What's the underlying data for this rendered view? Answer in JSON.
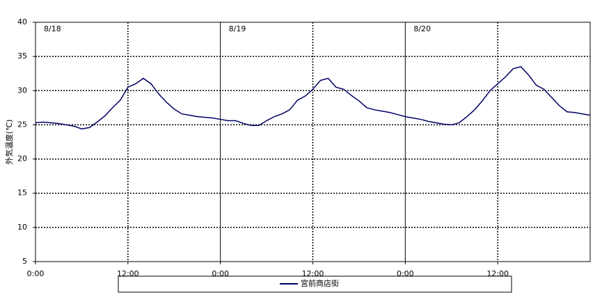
{
  "chart_data": {
    "type": "line",
    "y_label": "外気温度(℃)",
    "x": [
      0,
      1,
      2,
      3,
      4,
      5,
      6,
      7,
      8,
      9,
      10,
      11,
      12,
      13,
      14,
      15,
      16,
      17,
      18,
      19,
      20,
      21,
      22,
      23,
      24,
      25,
      26,
      27,
      28,
      29,
      30,
      31,
      32,
      33,
      34,
      35,
      36,
      37,
      38,
      39,
      40,
      41,
      42,
      43,
      44,
      45,
      46,
      47,
      48,
      49,
      50,
      51,
      52,
      53,
      54,
      55,
      56,
      57,
      58,
      59,
      60,
      61,
      62,
      63,
      64,
      65,
      66,
      67,
      68,
      69,
      70,
      71,
      72
    ],
    "series": [
      {
        "name": "宮前商店街",
        "color": "#000066",
        "values": [
          25.3,
          25.4,
          25.3,
          25.2,
          25.0,
          24.8,
          24.4,
          24.6,
          25.4,
          26.3,
          27.5,
          28.6,
          30.5,
          31.0,
          31.8,
          31.0,
          29.5,
          28.3,
          27.3,
          26.6,
          26.4,
          26.2,
          26.1,
          26.0,
          25.8,
          25.6,
          25.6,
          25.2,
          24.9,
          24.9,
          25.6,
          26.2,
          26.6,
          27.2,
          28.6,
          29.2,
          30.2,
          31.5,
          31.8,
          30.5,
          30.2,
          29.3,
          28.5,
          27.5,
          27.2,
          27.0,
          26.8,
          26.5,
          26.2,
          26.0,
          25.8,
          25.5,
          25.3,
          25.1,
          25.0,
          25.3,
          26.2,
          27.2,
          28.5,
          30.0,
          31.0,
          32.0,
          33.2,
          33.5,
          32.3,
          30.8,
          30.2,
          29.0,
          27.8,
          26.9,
          26.8,
          26.6,
          26.4
        ]
      }
    ],
    "xlim": [
      0,
      72
    ],
    "xticks": [
      {
        "value": 0,
        "label": "0:00"
      },
      {
        "value": 12,
        "label": "12:00"
      },
      {
        "value": 24,
        "label": "0:00"
      },
      {
        "value": 36,
        "label": "12:00"
      },
      {
        "value": 48,
        "label": "0:00"
      },
      {
        "value": 60,
        "label": "12:00"
      }
    ],
    "ylim": [
      5,
      40
    ],
    "yticks": [
      5,
      10,
      15,
      20,
      25,
      30,
      35,
      40
    ],
    "grid": true,
    "annotations": [
      {
        "text": "8/18",
        "x": 0
      },
      {
        "text": "8/19",
        "x": 24
      },
      {
        "text": "8/20",
        "x": 48
      }
    ]
  }
}
